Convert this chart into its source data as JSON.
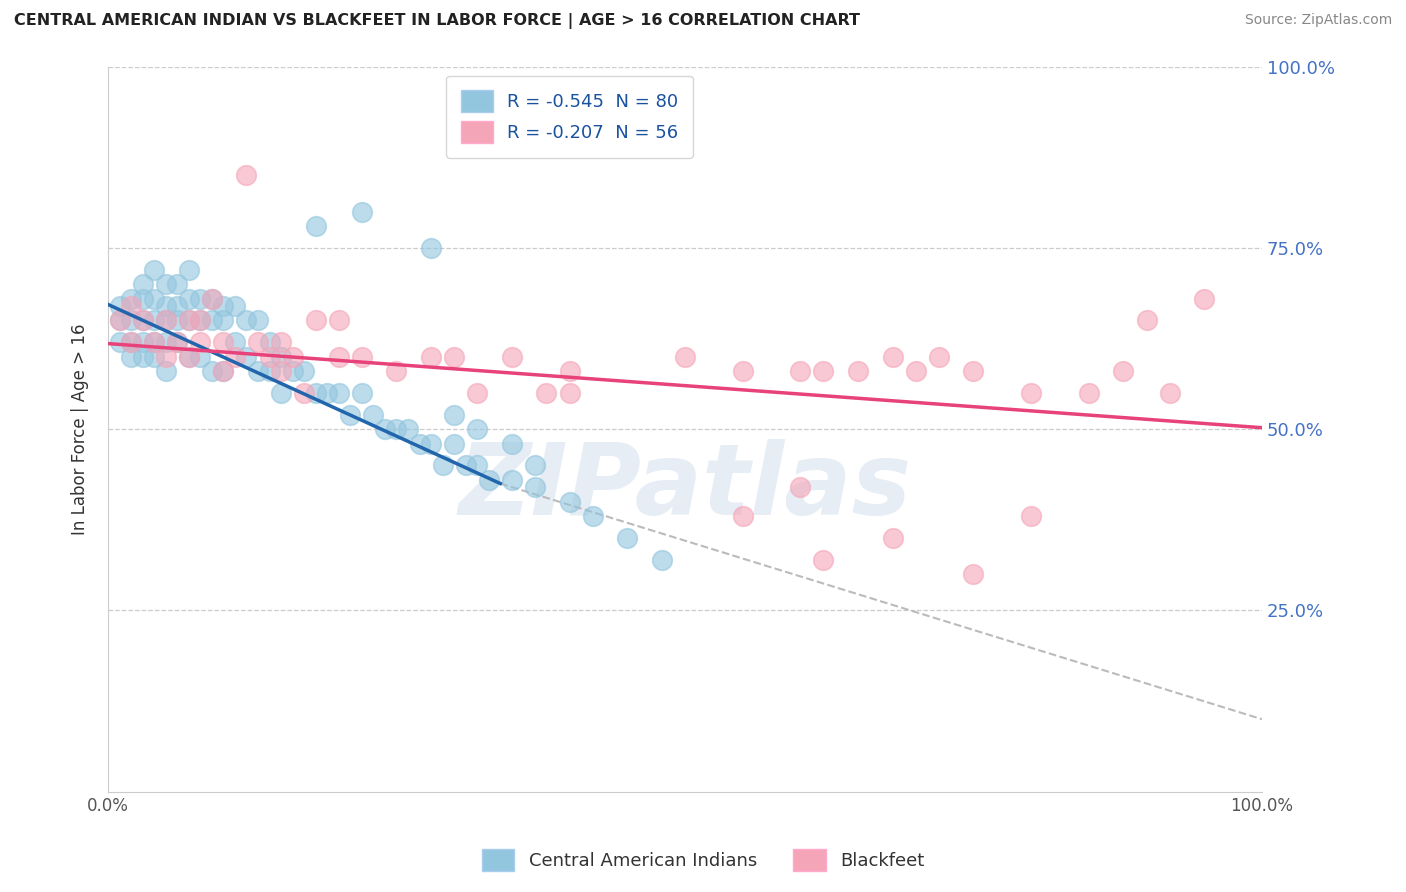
{
  "title": "CENTRAL AMERICAN INDIAN VS BLACKFEET IN LABOR FORCE | AGE > 16 CORRELATION CHART",
  "source": "Source: ZipAtlas.com",
  "ylabel": "In Labor Force | Age > 16",
  "xlim": [
    0.0,
    1.0
  ],
  "ylim": [
    0.0,
    1.0
  ],
  "xtick_positions": [
    0.0,
    1.0
  ],
  "xtick_labels": [
    "0.0%",
    "100.0%"
  ],
  "ytick_positions": [
    0.25,
    0.5,
    0.75,
    1.0
  ],
  "ytick_labels": [
    "25.0%",
    "50.0%",
    "75.0%",
    "100.0%"
  ],
  "legend1_label": "R = -0.545  N = 80",
  "legend2_label": "R = -0.207  N = 56",
  "legend_bottom_label1": "Central American Indians",
  "legend_bottom_label2": "Blackfeet",
  "blue_color": "#92c5de",
  "pink_color": "#f4a5b8",
  "blue_line_color": "#2166ac",
  "pink_line_color": "#e8427a",
  "dashed_line_color": "#bbbbbb",
  "watermark": "ZIPatlas",
  "blue_scatter_x": [
    0.01,
    0.01,
    0.01,
    0.02,
    0.02,
    0.02,
    0.02,
    0.03,
    0.03,
    0.03,
    0.03,
    0.03,
    0.04,
    0.04,
    0.04,
    0.04,
    0.04,
    0.05,
    0.05,
    0.05,
    0.05,
    0.05,
    0.06,
    0.06,
    0.06,
    0.06,
    0.07,
    0.07,
    0.07,
    0.07,
    0.08,
    0.08,
    0.08,
    0.09,
    0.09,
    0.09,
    0.1,
    0.1,
    0.1,
    0.11,
    0.11,
    0.12,
    0.12,
    0.13,
    0.13,
    0.14,
    0.14,
    0.15,
    0.15,
    0.16,
    0.17,
    0.18,
    0.19,
    0.2,
    0.21,
    0.22,
    0.23,
    0.24,
    0.25,
    0.26,
    0.27,
    0.28,
    0.29,
    0.3,
    0.31,
    0.32,
    0.33,
    0.35,
    0.37,
    0.22,
    0.18,
    0.28,
    0.3,
    0.32,
    0.35,
    0.37,
    0.4,
    0.42,
    0.45,
    0.48
  ],
  "blue_scatter_y": [
    0.67,
    0.65,
    0.62,
    0.68,
    0.65,
    0.62,
    0.6,
    0.7,
    0.68,
    0.65,
    0.62,
    0.6,
    0.72,
    0.68,
    0.65,
    0.62,
    0.6,
    0.7,
    0.67,
    0.65,
    0.62,
    0.58,
    0.7,
    0.67,
    0.65,
    0.62,
    0.72,
    0.68,
    0.65,
    0.6,
    0.68,
    0.65,
    0.6,
    0.68,
    0.65,
    0.58,
    0.67,
    0.65,
    0.58,
    0.67,
    0.62,
    0.65,
    0.6,
    0.65,
    0.58,
    0.62,
    0.58,
    0.6,
    0.55,
    0.58,
    0.58,
    0.55,
    0.55,
    0.55,
    0.52,
    0.55,
    0.52,
    0.5,
    0.5,
    0.5,
    0.48,
    0.48,
    0.45,
    0.48,
    0.45,
    0.45,
    0.43,
    0.43,
    0.42,
    0.8,
    0.78,
    0.75,
    0.52,
    0.5,
    0.48,
    0.45,
    0.4,
    0.38,
    0.35,
    0.32
  ],
  "pink_scatter_x": [
    0.01,
    0.02,
    0.02,
    0.03,
    0.04,
    0.05,
    0.05,
    0.06,
    0.07,
    0.07,
    0.08,
    0.08,
    0.09,
    0.1,
    0.1,
    0.11,
    0.12,
    0.13,
    0.14,
    0.15,
    0.16,
    0.17,
    0.2,
    0.22,
    0.25,
    0.3,
    0.32,
    0.38,
    0.4,
    0.5,
    0.55,
    0.6,
    0.62,
    0.65,
    0.68,
    0.7,
    0.72,
    0.75,
    0.8,
    0.85,
    0.88,
    0.9,
    0.92,
    0.95,
    0.55,
    0.6,
    0.28,
    0.35,
    0.4,
    0.2,
    0.15,
    0.18,
    0.62,
    0.68,
    0.75,
    0.8
  ],
  "pink_scatter_y": [
    0.65,
    0.67,
    0.62,
    0.65,
    0.62,
    0.65,
    0.6,
    0.62,
    0.65,
    0.6,
    0.65,
    0.62,
    0.68,
    0.62,
    0.58,
    0.6,
    0.85,
    0.62,
    0.6,
    0.58,
    0.6,
    0.55,
    0.6,
    0.6,
    0.58,
    0.6,
    0.55,
    0.55,
    0.58,
    0.6,
    0.58,
    0.58,
    0.58,
    0.58,
    0.6,
    0.58,
    0.6,
    0.58,
    0.55,
    0.55,
    0.58,
    0.65,
    0.55,
    0.68,
    0.38,
    0.42,
    0.6,
    0.6,
    0.55,
    0.65,
    0.62,
    0.65,
    0.32,
    0.35,
    0.3,
    0.38
  ],
  "blue_line_x": [
    0.0,
    0.34
  ],
  "blue_line_y": [
    0.672,
    0.425
  ],
  "pink_line_x": [
    0.0,
    1.0
  ],
  "pink_line_y": [
    0.618,
    0.502
  ],
  "dashed_line_x": [
    0.34,
    1.0
  ],
  "dashed_line_y": [
    0.425,
    0.1
  ]
}
